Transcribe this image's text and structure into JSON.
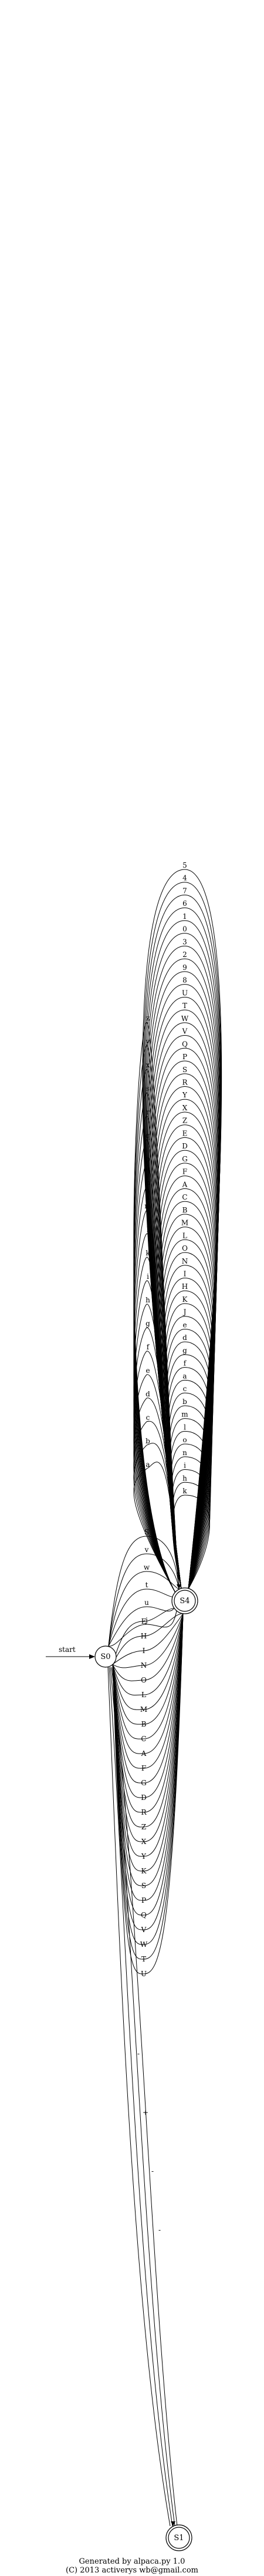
{
  "diagram": {
    "type": "finite-state-machine",
    "start_label": "start",
    "states": [
      {
        "id": "S0",
        "accepting": false
      },
      {
        "id": "S4",
        "accepting": true
      },
      {
        "id": "S1",
        "accepting": true
      }
    ],
    "edges_s0_to_s4_up": [
      "S",
      "v",
      "w",
      "t",
      "u",
      "j"
    ],
    "edges_s0_to_s4_down": [
      "E",
      "H",
      "I",
      "N",
      "O",
      "L",
      "M",
      "B",
      "C",
      "A",
      "F",
      "G",
      "D",
      "R",
      "Z",
      "X",
      "Y",
      "K",
      "S",
      "P",
      "Q",
      "V",
      "W",
      "T",
      "U"
    ],
    "edges_s4_self": [
      "5",
      "4",
      "7",
      "6",
      "1",
      "0",
      "3",
      "2",
      "9",
      "8",
      "U",
      "T",
      "W",
      "V",
      "Q",
      "P",
      "S",
      "R",
      "Y",
      "X",
      "Z",
      "E",
      "D",
      "G",
      "F",
      "A",
      "C",
      "B",
      "M",
      "L",
      "O",
      "N",
      "I",
      "H",
      "K",
      "J",
      "e",
      "d",
      "g",
      "f",
      "a",
      "c",
      "b",
      "m",
      "l",
      "o",
      "n",
      "i",
      "h",
      "k"
    ],
    "edges_s4_self_lower_left": [
      "z",
      "y",
      "x",
      "s",
      "r",
      "q",
      "p",
      "n",
      "m",
      "l",
      "k",
      "i",
      "h",
      "g",
      "f",
      "e",
      "d",
      "c",
      "b",
      "a"
    ],
    "edges_s0_to_s1": [
      "-",
      "+",
      "-",
      "-"
    ]
  },
  "footer": {
    "line1": "Generated by alpaca.py 1.0",
    "line2": "(C) 2013 activerys wb@gmail.com"
  }
}
